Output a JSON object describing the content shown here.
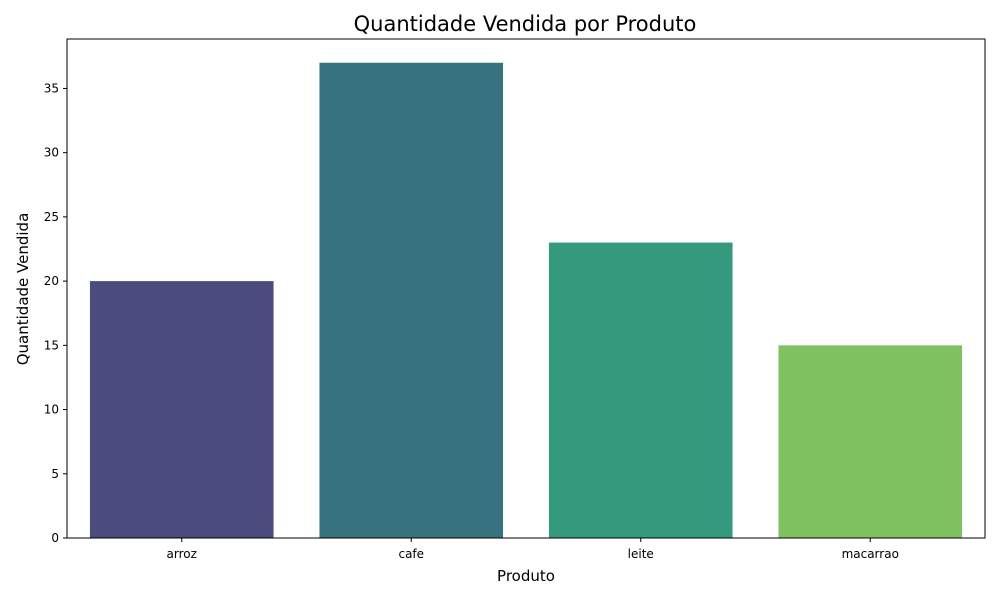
{
  "chart_data": {
    "type": "bar",
    "title": "Quantidade Vendida por Produto",
    "xlabel": "Produto",
    "ylabel": "Quantidade Vendida",
    "categories": [
      "arroz",
      "cafe",
      "leite",
      "macarrao"
    ],
    "values": [
      20,
      37,
      23,
      15
    ],
    "colors": [
      "#4a4c7d",
      "#37727f",
      "#35997e",
      "#80c262"
    ],
    "ylim": [
      0,
      38.85
    ],
    "yticks": [
      0,
      5,
      10,
      15,
      20,
      25,
      30,
      35
    ],
    "grid": false,
    "legend": "none"
  }
}
